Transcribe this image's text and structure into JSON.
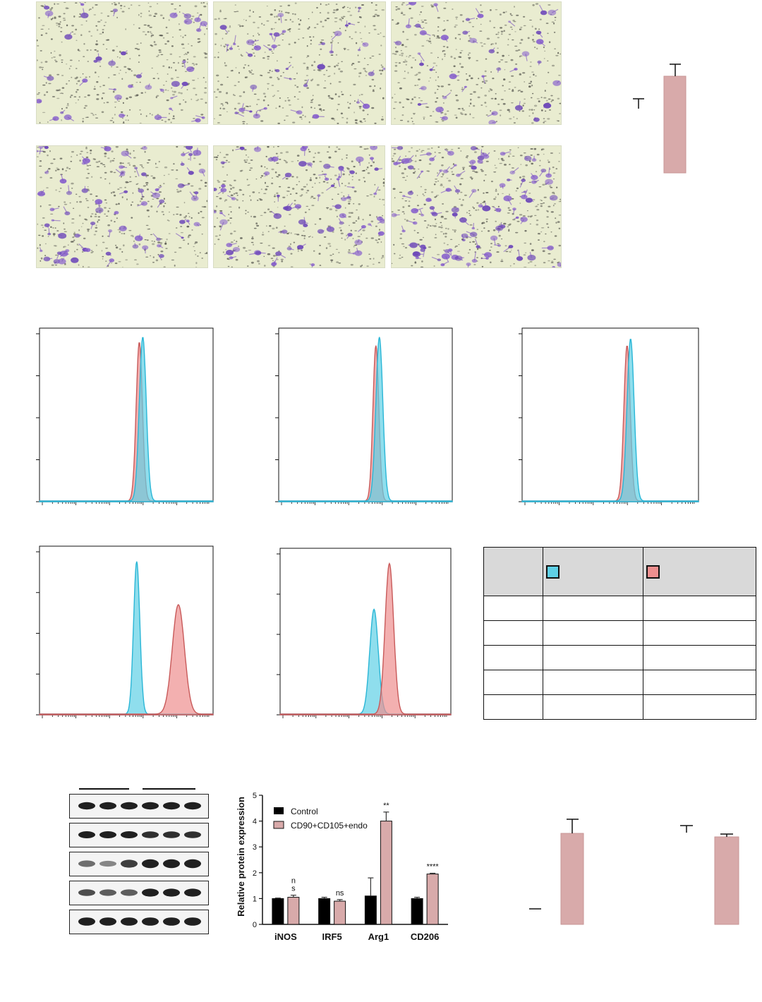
{
  "bar_chart": {
    "ylabel": "Relative protein expression",
    "legend": [
      {
        "name": "Control",
        "color": "#000000"
      },
      {
        "name": "CD90+CD105+endo",
        "color": "#d8aaaa"
      }
    ],
    "categories": [
      "iNOS",
      "IRF5",
      "Arg1",
      "CD206"
    ],
    "yticks": [
      "0",
      "1",
      "2",
      "3",
      "4",
      "5"
    ],
    "significance": [
      "n\ns",
      "ns",
      "**",
      "****"
    ]
  },
  "chart_data": {
    "type": "bar",
    "categories": [
      "iNOS",
      "IRF5",
      "Arg1",
      "CD206"
    ],
    "series": [
      {
        "name": "Control",
        "values": [
          1.0,
          1.0,
          1.1,
          1.0
        ],
        "errors": [
          0.02,
          0.05,
          0.7,
          0.05
        ]
      },
      {
        "name": "CD90+CD105+endo",
        "values": [
          1.05,
          0.9,
          4.0,
          1.95
        ],
        "errors": [
          0.08,
          0.06,
          0.35,
          0.03
        ]
      }
    ],
    "ylabel": "Relative protein expression",
    "ylim": [
      0,
      5
    ],
    "legend_position": "top-left",
    "grid": false
  },
  "colors": {
    "control": "#000000",
    "treated": "#d8aaaa",
    "histogram_cyan": "#5fd0e6",
    "histogram_red": "#ee8f8f",
    "crystal_violet": "#7a4fc0",
    "table_header": "#d9d9d9"
  }
}
